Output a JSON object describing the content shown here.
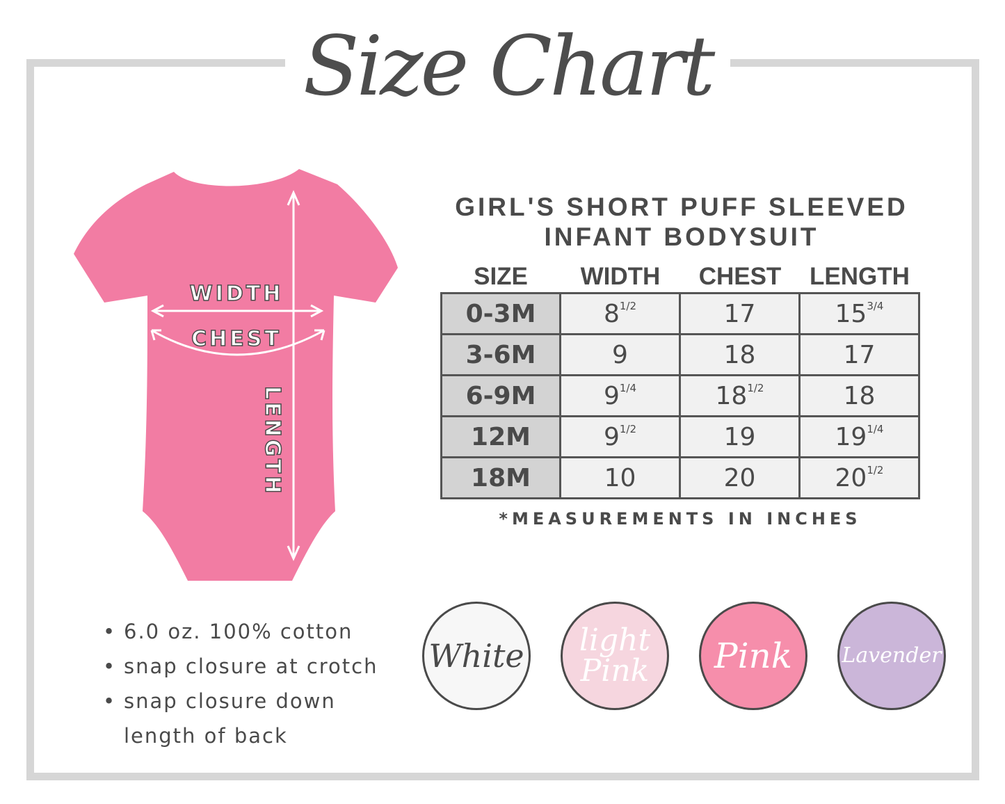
{
  "title": "Size Chart",
  "product": {
    "line1": "GIRL'S SHORT PUFF SLEEVED",
    "line2": "INFANT BODYSUIT"
  },
  "diagram": {
    "width_label": "WIDTH",
    "chest_label": "CHEST",
    "length_label": "LENGTH",
    "garment_color": "#f27ca3"
  },
  "table": {
    "headers": [
      "SIZE",
      "WIDTH",
      "CHEST",
      "LENGTH"
    ],
    "rows": [
      {
        "size": "0-3M",
        "width": "8",
        "width_frac": "1/2",
        "chest": "17",
        "chest_frac": "",
        "length": "15",
        "length_frac": "3/4"
      },
      {
        "size": "3-6M",
        "width": "9",
        "width_frac": "",
        "chest": "18",
        "chest_frac": "",
        "length": "17",
        "length_frac": ""
      },
      {
        "size": "6-9M",
        "width": "9",
        "width_frac": "1/4",
        "chest": "18",
        "chest_frac": "1/2",
        "length": "18",
        "length_frac": ""
      },
      {
        "size": "12M",
        "width": "9",
        "width_frac": "1/2",
        "chest": "19",
        "chest_frac": "",
        "length": "19",
        "length_frac": "1/4"
      },
      {
        "size": "18M",
        "width": "10",
        "width_frac": "",
        "chest": "20",
        "chest_frac": "",
        "length": "20",
        "length_frac": "1/2"
      }
    ]
  },
  "note": "*MEASUREMENTS IN INCHES",
  "features": [
    "6.0 oz. 100% cotton",
    "snap closure at crotch",
    "snap closure down length of back"
  ],
  "colors": [
    {
      "name": "White",
      "hex": "#f7f7f7",
      "text": "#4a4a4a"
    },
    {
      "name": "light Pink",
      "hex": "#f6d6df",
      "text": "#ffffff"
    },
    {
      "name": "Pink",
      "hex": "#f68eab",
      "text": "#ffffff"
    },
    {
      "name": "Lavender",
      "hex": "#cbb6d9",
      "text": "#ffffff"
    }
  ]
}
